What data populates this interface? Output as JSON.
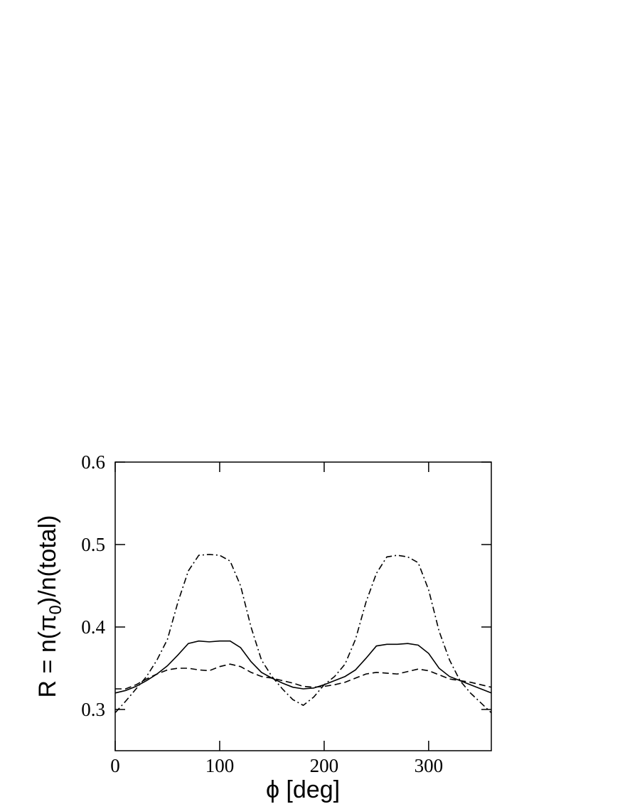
{
  "chart_data": {
    "type": "line",
    "x_label": "ϕ [deg]",
    "y_label_parts": [
      "R = n(π",
      "0",
      ")/n(total)"
    ],
    "x": [
      0,
      10,
      20,
      30,
      40,
      50,
      60,
      70,
      80,
      90,
      100,
      110,
      120,
      130,
      140,
      150,
      160,
      170,
      180,
      190,
      200,
      210,
      220,
      230,
      240,
      250,
      260,
      270,
      280,
      290,
      300,
      310,
      320,
      330,
      340,
      350,
      360
    ],
    "series": [
      {
        "color": "#000000",
        "dash": "solid",
        "values": [
          0.32,
          0.323,
          0.328,
          0.335,
          0.343,
          0.353,
          0.366,
          0.38,
          0.383,
          0.382,
          0.383,
          0.383,
          0.375,
          0.358,
          0.345,
          0.338,
          0.332,
          0.327,
          0.325,
          0.326,
          0.33,
          0.335,
          0.34,
          0.348,
          0.362,
          0.377,
          0.379,
          0.379,
          0.38,
          0.378,
          0.368,
          0.35,
          0.34,
          0.335,
          0.33,
          0.325,
          0.32
        ]
      },
      {
        "color": "#000000",
        "dash": "dashed",
        "values": [
          0.325,
          0.325,
          0.33,
          0.337,
          0.343,
          0.348,
          0.35,
          0.35,
          0.348,
          0.347,
          0.352,
          0.355,
          0.352,
          0.345,
          0.34,
          0.338,
          0.335,
          0.332,
          0.328,
          0.327,
          0.328,
          0.33,
          0.333,
          0.338,
          0.343,
          0.345,
          0.344,
          0.343,
          0.346,
          0.349,
          0.347,
          0.342,
          0.337,
          0.335,
          0.333,
          0.33,
          0.327
        ]
      },
      {
        "color": "#000000",
        "dash": "dashdot",
        "values": [
          0.296,
          0.31,
          0.325,
          0.34,
          0.36,
          0.385,
          0.43,
          0.468,
          0.487,
          0.488,
          0.487,
          0.48,
          0.45,
          0.4,
          0.36,
          0.34,
          0.325,
          0.312,
          0.305,
          0.315,
          0.33,
          0.34,
          0.355,
          0.385,
          0.43,
          0.465,
          0.485,
          0.487,
          0.485,
          0.478,
          0.445,
          0.395,
          0.36,
          0.335,
          0.32,
          0.308,
          0.296
        ]
      }
    ],
    "xlim": [
      0,
      360
    ],
    "xticks": [
      0,
      100,
      200,
      300
    ],
    "ylim": [
      0.25,
      0.6
    ],
    "yticks": [
      0.3,
      0.4,
      0.5,
      0.6
    ]
  }
}
